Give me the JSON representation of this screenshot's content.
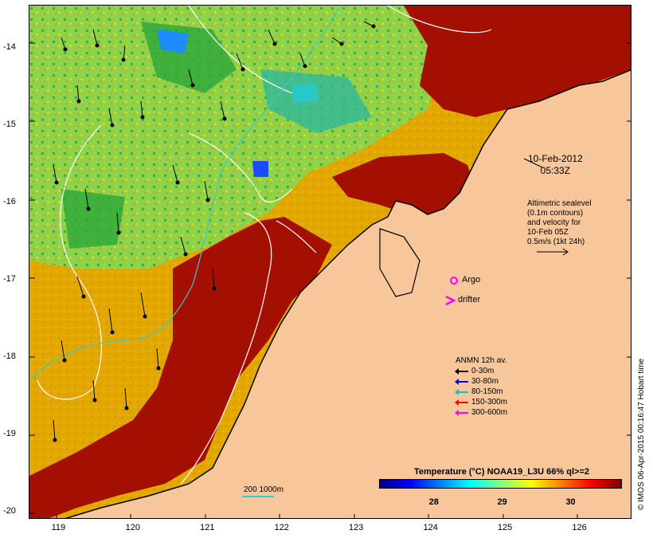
{
  "map": {
    "lon_ticks": [
      "119",
      "120",
      "121",
      "122",
      "123",
      "124",
      "125",
      "126"
    ],
    "lat_ticks": [
      "-14",
      "-15",
      "-16",
      "-17",
      "-18",
      "-19",
      "-20"
    ],
    "lon_range": [
      118.6,
      126.7
    ],
    "lat_range": [
      -13.45,
      -20.1
    ]
  },
  "overlay": {
    "datestamp_line1": "10-Feb-2012",
    "datestamp_line2": "05:33Z",
    "sealevel_line1": "Altimetric sealevel",
    "sealevel_line2": "(0.1m contours)",
    "sealevel_line3": "and velocity for",
    "sealevel_line4": "10-Feb 05Z",
    "sealevel_line5": "0.5m/s (1kt 24h)",
    "argo_label": "Argo",
    "drifter_label": "drifter"
  },
  "anmn_legend": {
    "title": "ANMN 12h av.",
    "items": [
      {
        "label": "0-30m",
        "color": "#000000"
      },
      {
        "label": "30-80m",
        "color": "#0000ff"
      },
      {
        "label": "80-150m",
        "color": "#00c8c8"
      },
      {
        "label": "150-300m",
        "color": "#ff0000"
      },
      {
        "label": "300-600m",
        "color": "#ff00ff"
      }
    ]
  },
  "colorbar": {
    "title": "Temperature (°C) NOAA19_L3U 66% ql>=2",
    "tick1": "28",
    "tick2": "29",
    "tick3": "30",
    "ticks": [
      28,
      29,
      30
    ],
    "range": [
      27.2,
      30.75
    ],
    "stops": [
      "#00007f",
      "#0000ff",
      "#0080ff",
      "#00ffff",
      "#80ff80",
      "#ffff00",
      "#ff8000",
      "#ff0000",
      "#800000"
    ]
  },
  "scale_bar": {
    "label": "200  1000m"
  },
  "credit": "© IMOS 06-Apr-2015 00:16:47 Hobart time",
  "colors": {
    "land": "#f7c79b",
    "warm_sst": "#a30f00",
    "coastline": "#000000",
    "contour": "#ffffff",
    "isobath": "#3cc8c8"
  }
}
